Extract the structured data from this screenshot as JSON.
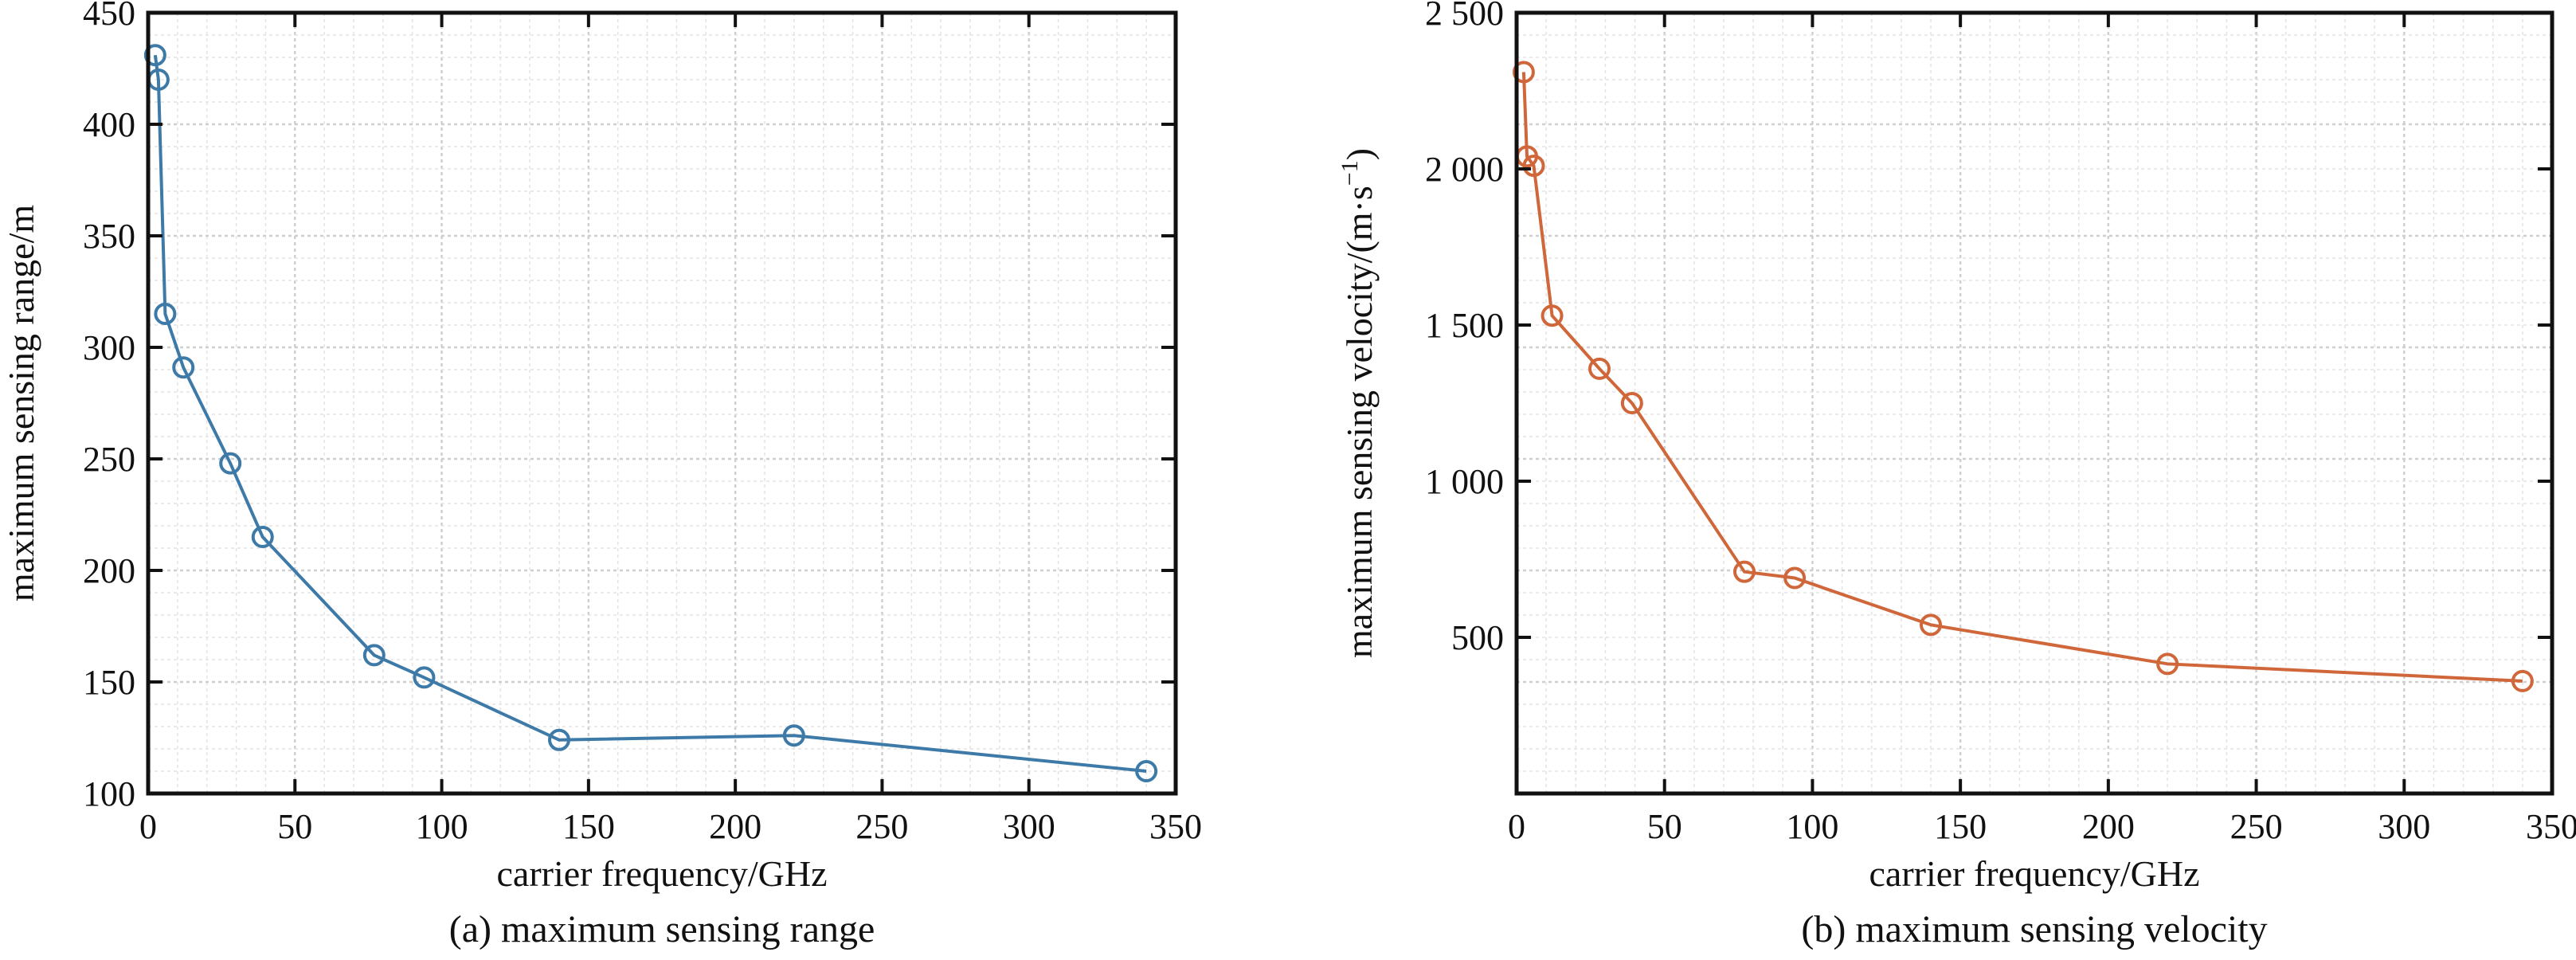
{
  "chart_data": [
    {
      "id": "a",
      "type": "line",
      "caption": "(a) maximum sensing range",
      "xlabel": "carrier frequency/GHz",
      "ylabel": "maximum sensing range/m",
      "xlim": [
        0,
        350
      ],
      "ylim": [
        100,
        450
      ],
      "xticks": [
        0,
        50,
        100,
        150,
        200,
        250,
        300,
        350
      ],
      "yticks": [
        100,
        150,
        200,
        250,
        300,
        350,
        400,
        450
      ],
      "xtick_labels": [
        "0",
        "50",
        "100",
        "150",
        "200",
        "250",
        "300",
        "350"
      ],
      "ytick_labels": [
        "100",
        "150",
        "200",
        "250",
        "300",
        "350",
        "400",
        "450"
      ],
      "grid": true,
      "color": "#3d7aa8",
      "marker": "circle",
      "series": [
        {
          "x": [
            2.4,
            3.5,
            5.8,
            12,
            28,
            39,
            77,
            94,
            140,
            220,
            340
          ],
          "y": [
            431,
            420,
            315,
            291,
            248,
            215,
            162,
            152,
            124,
            126,
            110
          ]
        }
      ]
    },
    {
      "id": "b",
      "type": "line",
      "caption": "(b) maximum sensing velocity",
      "xlabel": "carrier frequency/GHz",
      "ylabel_main": "maximum sensing velocity/(m·s",
      "ylabel_sup": "−1",
      "ylabel_end": ")",
      "xlim": [
        0,
        350
      ],
      "ylim": [
        0,
        2500
      ],
      "xticks": [
        0,
        50,
        100,
        150,
        200,
        250,
        300,
        350
      ],
      "yticks": [
        500,
        1000,
        1500,
        2000,
        2500
      ],
      "xtick_labels": [
        "0",
        "50",
        "100",
        "150",
        "200",
        "250",
        "300",
        "350"
      ],
      "ytick_labels": [
        "500",
        "1 000",
        "1 500",
        "2 000",
        "2 500"
      ],
      "grid": true,
      "color": "#d0673b",
      "marker": "circle",
      "series": [
        {
          "x": [
            2.4,
            3.5,
            5.8,
            12,
            28,
            39,
            77,
            94,
            140,
            220,
            340
          ],
          "y": [
            2310,
            2040,
            2010,
            1530,
            1360,
            1250,
            710,
            690,
            540,
            415,
            360
          ]
        }
      ]
    }
  ]
}
